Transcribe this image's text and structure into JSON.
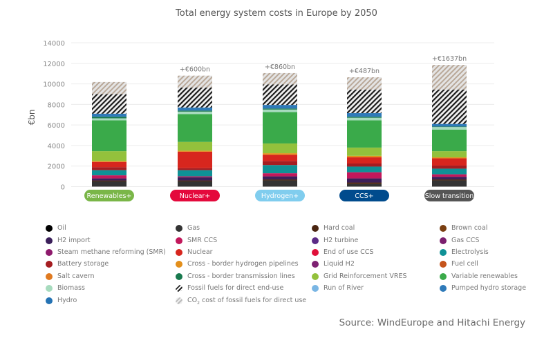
{
  "chart_data": {
    "type": "bar",
    "stacked": true,
    "title": "Total energy system costs in Europe by 2050",
    "ylabel": "€bn",
    "xlabel": "",
    "ylim": [
      0,
      14000
    ],
    "yticks": [
      "0",
      "2000",
      "4000",
      "6000",
      "8000",
      "10000",
      "12000",
      "14000"
    ],
    "grid": true,
    "categories": [
      "Renewables+",
      "Nuclear+",
      "Hydrogen+",
      "CCS+",
      "Slow transition"
    ],
    "category_colors": [
      "#7ab648",
      "#e4093c",
      "#80cdee",
      "#004b8d",
      "#555555"
    ],
    "annotations": [
      "",
      "+€600bn",
      "+€860bn",
      "+€487bn",
      "+€1637bn"
    ],
    "series": [
      {
        "name": "Gas",
        "color": "#333333",
        "values": [
          500,
          500,
          600,
          250,
          600
        ]
      },
      {
        "name": "Hard coal",
        "color": "#4a2511",
        "values": [
          100,
          100,
          100,
          150,
          100
        ]
      },
      {
        "name": "H2 import",
        "color": "#3b1f5a",
        "values": [
          200,
          300,
          300,
          400,
          250
        ]
      },
      {
        "name": "SMR CCS",
        "color": "#c2185b",
        "values": [
          300,
          100,
          300,
          600,
          250
        ]
      },
      {
        "name": "Electrolysis",
        "color": "#0f9196",
        "values": [
          500,
          600,
          800,
          550,
          550
        ]
      },
      {
        "name": "Battery storage",
        "color": "#a51d21",
        "values": [
          300,
          200,
          400,
          300,
          300
        ]
      },
      {
        "name": "Nuclear",
        "color": "#d7261e",
        "values": [
          500,
          1600,
          600,
          600,
          700
        ]
      },
      {
        "name": "Cross - border hydrogen pipelines",
        "color": "#e38f1b",
        "values": [
          100,
          100,
          150,
          150,
          100
        ]
      },
      {
        "name": "Grid Reinforcement VRES",
        "color": "#93c13c",
        "values": [
          950,
          850,
          950,
          800,
          600
        ]
      },
      {
        "name": "Variable renewables",
        "color": "#3aaa4a",
        "values": [
          3000,
          2700,
          3050,
          2650,
          2100
        ]
      },
      {
        "name": "Biomass",
        "color": "#a7dbbe",
        "values": [
          200,
          250,
          250,
          250,
          250
        ]
      },
      {
        "name": "Cross - border transmission lines",
        "color": "#18794e",
        "values": [
          150,
          100,
          100,
          100,
          50
        ]
      },
      {
        "name": "Hydro",
        "color": "#2f7ab9",
        "values": [
          300,
          300,
          350,
          350,
          250
        ]
      },
      {
        "name": "Fossil fuels for direct end-use",
        "color": "hatch-black",
        "values": [
          1900,
          1950,
          2000,
          2300,
          3350
        ]
      },
      {
        "name": "CO2 cost of fossil fuels for direct use",
        "color": "hatch-grey",
        "values": [
          1180,
          1150,
          1100,
          1190,
          2400
        ]
      }
    ]
  },
  "legend": [
    {
      "label": "Oil",
      "color": "#000000"
    },
    {
      "label": "Gas",
      "color": "#333333"
    },
    {
      "label": "Hard coal",
      "color": "#4a2511"
    },
    {
      "label": "Brown coal",
      "color": "#7a3f12"
    },
    {
      "label": "H2 import",
      "color": "#3b1f5a"
    },
    {
      "label": "SMR CCS",
      "color": "#c2185b"
    },
    {
      "label": "H2 turbine",
      "color": "#5b2a86"
    },
    {
      "label": "Gas CCS",
      "color": "#7b1f6e"
    },
    {
      "label": "Steam methane reforming (SMR)",
      "color": "#8e1a6c"
    },
    {
      "label": "Nuclear",
      "color": "#d7261e"
    },
    {
      "label": "End of use CCS",
      "color": "#e0103a"
    },
    {
      "label": "Electrolysis",
      "color": "#0f9196"
    },
    {
      "label": "Battery storage",
      "color": "#a51d21"
    },
    {
      "label": "Cross - border hydrogen pipelines",
      "color": "#e38f1b"
    },
    {
      "label": "Liquid H2",
      "color": "#7e2272"
    },
    {
      "label": "Fuel cell",
      "color": "#c5541b"
    },
    {
      "label": "Salt cavern",
      "color": "#e07a20"
    },
    {
      "label": "Cross - border transmission lines",
      "color": "#18794e"
    },
    {
      "label": "Grid Reinforcement VRES",
      "color": "#93c13c"
    },
    {
      "label": "Variable renewables",
      "color": "#3aaa4a"
    },
    {
      "label": "Biomass",
      "color": "#a7dbbe"
    },
    {
      "label": "Fossil fuels for direct end-use",
      "color": "hatch-black"
    },
    {
      "label": "Run of River",
      "color": "#7ab6e4"
    },
    {
      "label": "Pumped hydro storage",
      "color": "#2f7ab9"
    },
    {
      "label": "Hydro",
      "color": "#2573b4"
    },
    {
      "label": "cost of fossil fuels for direct use",
      "prefix": "CO",
      "sub": "2",
      "color": "hatch-grey"
    }
  ],
  "source": "Source: WindEurope and Hitachi Energy"
}
